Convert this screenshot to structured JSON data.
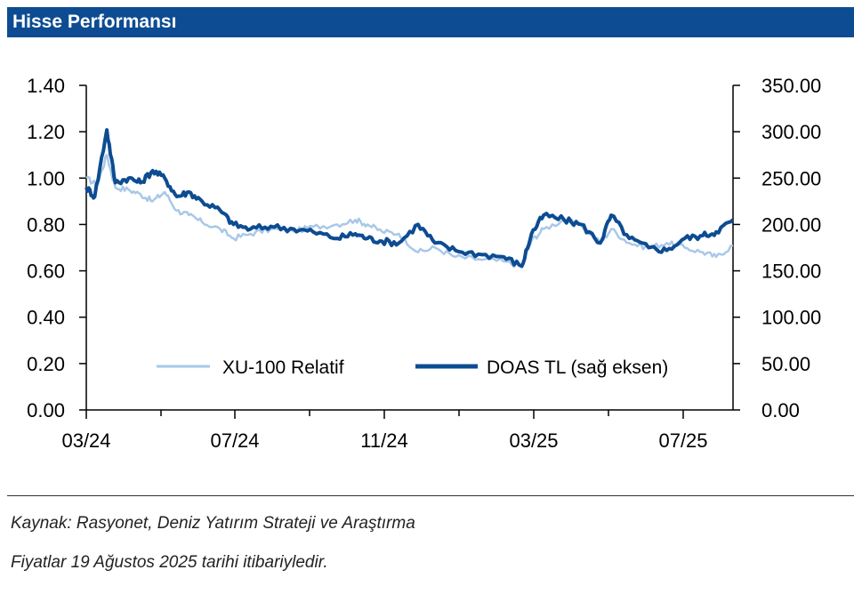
{
  "header": {
    "title": "Hisse Performansı"
  },
  "footer": {
    "source": "Kaynak: Rasyonet, Deniz Yatırım Strateji ve Araştırma",
    "note": "Fiyatlar 19 Ağustos 2025 tarihi itibariyledir."
  },
  "chart_data": {
    "type": "line",
    "title": "",
    "x_ticks": [
      "03/24",
      "07/24",
      "11/24",
      "03/25",
      "07/25"
    ],
    "y_left_ticks": [
      "0.00",
      "0.20",
      "0.40",
      "0.60",
      "0.80",
      "1.00",
      "1.20",
      "1.40"
    ],
    "y_right_ticks": [
      "0.00",
      "50.00",
      "100.00",
      "150.00",
      "200.00",
      "250.00",
      "300.00",
      "350.00"
    ],
    "y_left_range": [
      0,
      1.4
    ],
    "y_right_range": [
      0,
      350
    ],
    "x_range": [
      "2024-03-01",
      "2025-08-19"
    ],
    "legend": {
      "placement": "bottom-inside"
    },
    "series": [
      {
        "name": "XU-100 Relatif",
        "axis": "left",
        "color": "#a9c8e8",
        "points": [
          [
            "2024-03-01",
            1.0
          ],
          [
            "2024-03-10",
            0.97
          ],
          [
            "2024-03-18",
            1.1
          ],
          [
            "2024-03-25",
            0.96
          ],
          [
            "2024-04-05",
            0.95
          ],
          [
            "2024-04-15",
            0.93
          ],
          [
            "2024-04-25",
            0.9
          ],
          [
            "2024-05-05",
            0.94
          ],
          [
            "2024-05-15",
            0.86
          ],
          [
            "2024-05-25",
            0.84
          ],
          [
            "2024-06-05",
            0.81
          ],
          [
            "2024-06-20",
            0.78
          ],
          [
            "2024-07-01",
            0.74
          ],
          [
            "2024-07-15",
            0.76
          ],
          [
            "2024-08-01",
            0.78
          ],
          [
            "2024-08-20",
            0.77
          ],
          [
            "2024-09-05",
            0.79
          ],
          [
            "2024-09-25",
            0.8
          ],
          [
            "2024-10-10",
            0.82
          ],
          [
            "2024-10-20",
            0.8
          ],
          [
            "2024-11-01",
            0.77
          ],
          [
            "2024-11-15",
            0.76
          ],
          [
            "2024-12-01",
            0.68
          ],
          [
            "2024-12-15",
            0.7
          ],
          [
            "2025-01-01",
            0.66
          ],
          [
            "2025-01-20",
            0.65
          ],
          [
            "2025-02-10",
            0.64
          ],
          [
            "2025-02-25",
            0.62
          ],
          [
            "2025-03-05",
            0.73
          ],
          [
            "2025-03-15",
            0.78
          ],
          [
            "2025-04-01",
            0.82
          ],
          [
            "2025-04-15",
            0.8
          ],
          [
            "2025-05-01",
            0.72
          ],
          [
            "2025-05-10",
            0.78
          ],
          [
            "2025-05-25",
            0.72
          ],
          [
            "2025-06-10",
            0.7
          ],
          [
            "2025-06-25",
            0.72
          ],
          [
            "2025-07-10",
            0.7
          ],
          [
            "2025-07-25",
            0.68
          ],
          [
            "2025-08-05",
            0.66
          ],
          [
            "2025-08-19",
            0.71
          ]
        ]
      },
      {
        "name": "DOAS TL (sağ eksen)",
        "axis": "right",
        "color": "#0d4c92",
        "points": [
          [
            "2024-03-01",
            240
          ],
          [
            "2024-03-08",
            230
          ],
          [
            "2024-03-18",
            302
          ],
          [
            "2024-03-25",
            245
          ],
          [
            "2024-04-05",
            250
          ],
          [
            "2024-04-15",
            245
          ],
          [
            "2024-04-25",
            258
          ],
          [
            "2024-05-05",
            250
          ],
          [
            "2024-05-15",
            230
          ],
          [
            "2024-05-25",
            235
          ],
          [
            "2024-06-05",
            225
          ],
          [
            "2024-06-20",
            215
          ],
          [
            "2024-07-01",
            200
          ],
          [
            "2024-07-15",
            195
          ],
          [
            "2024-08-01",
            198
          ],
          [
            "2024-08-20",
            195
          ],
          [
            "2024-09-05",
            192
          ],
          [
            "2024-09-25",
            185
          ],
          [
            "2024-10-10",
            190
          ],
          [
            "2024-10-20",
            185
          ],
          [
            "2024-11-01",
            182
          ],
          [
            "2024-11-15",
            180
          ],
          [
            "2024-12-01",
            200
          ],
          [
            "2024-12-15",
            180
          ],
          [
            "2025-01-01",
            172
          ],
          [
            "2025-01-20",
            168
          ],
          [
            "2025-02-10",
            165
          ],
          [
            "2025-02-25",
            155
          ],
          [
            "2025-03-05",
            190
          ],
          [
            "2025-03-15",
            210
          ],
          [
            "2025-04-01",
            205
          ],
          [
            "2025-04-15",
            200
          ],
          [
            "2025-05-01",
            180
          ],
          [
            "2025-05-10",
            210
          ],
          [
            "2025-05-25",
            185
          ],
          [
            "2025-06-10",
            175
          ],
          [
            "2025-06-25",
            172
          ],
          [
            "2025-07-10",
            185
          ],
          [
            "2025-07-25",
            188
          ],
          [
            "2025-08-05",
            192
          ],
          [
            "2025-08-19",
            205
          ]
        ]
      }
    ]
  }
}
